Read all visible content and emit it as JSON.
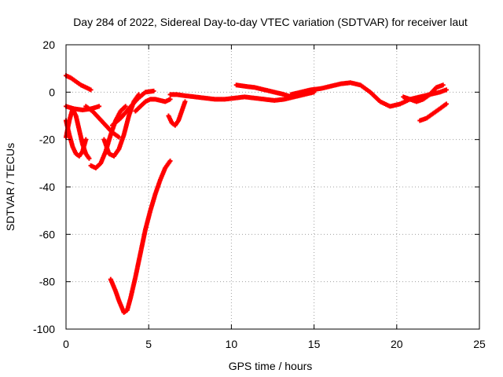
{
  "chart_data": {
    "type": "scatter",
    "title": "Day 284 of 2022, Sidereal Day-to-day VTEC variation (SDTVAR) for receiver laut",
    "xlabel": "GPS time / hours",
    "ylabel": "SDTVAR / TECUs",
    "xlim": [
      0,
      25
    ],
    "ylim": [
      -100,
      20
    ],
    "xticks": [
      0,
      5,
      10,
      15,
      20,
      25
    ],
    "yticks": [
      -100,
      -80,
      -60,
      -40,
      -20,
      0,
      20
    ],
    "grid": true,
    "series_color": "#ff0000",
    "series": [
      {
        "x": [
          0.0,
          0.3,
          0.6,
          0.9,
          1.2,
          1.5
        ],
        "y": [
          7,
          6,
          4.5,
          3,
          2,
          1
        ]
      },
      {
        "x": [
          0.0,
          0.2,
          0.4,
          0.6,
          0.8,
          1.0,
          1.2,
          1.4
        ],
        "y": [
          -19,
          -12,
          -7,
          -10,
          -16,
          -22,
          -26,
          -28
        ]
      },
      {
        "x": [
          0.0,
          0.2,
          0.4,
          0.6,
          0.8,
          1.0,
          1.2
        ],
        "y": [
          -12,
          -18,
          -23,
          -26,
          -27,
          -25,
          -20
        ]
      },
      {
        "x": [
          0.0,
          0.5,
          1.0,
          1.5,
          2.0
        ],
        "y": [
          -6,
          -7,
          -7.5,
          -7,
          -6
        ]
      },
      {
        "x": [
          1.5,
          1.8,
          2.1,
          2.4,
          2.7,
          3.0,
          3.3,
          3.6
        ],
        "y": [
          -31,
          -32,
          -30,
          -25,
          -18,
          -12,
          -8,
          -6
        ]
      },
      {
        "x": [
          2.3,
          2.6,
          2.9,
          3.2,
          3.5,
          3.8,
          4.1,
          4.4
        ],
        "y": [
          -20,
          -26,
          -27,
          -24,
          -18,
          -10,
          -4,
          -1
        ]
      },
      {
        "x": [
          1.2,
          1.6,
          2.0,
          2.4,
          2.8,
          3.2
        ],
        "y": [
          -6,
          -8,
          -11,
          -14,
          -17,
          -19
        ]
      },
      {
        "x": [
          2.8,
          3.3,
          3.8,
          4.3,
          4.8,
          5.3
        ],
        "y": [
          -14,
          -11,
          -7,
          -3,
          0,
          0.5
        ]
      },
      {
        "x": [
          4.2,
          4.5,
          4.8,
          5.1,
          5.4,
          5.7,
          6.0,
          6.3
        ],
        "y": [
          -8,
          -6,
          -4,
          -3,
          -3,
          -3.5,
          -4,
          -3
        ]
      },
      {
        "x": [
          2.7,
          3.0,
          3.2,
          3.5,
          3.7,
          3.9,
          4.2,
          4.5,
          4.8,
          5.1,
          5.4,
          5.7,
          6.0,
          6.3
        ],
        "y": [
          -79,
          -84,
          -88,
          -93,
          -92,
          -87,
          -78,
          -68,
          -58,
          -50,
          -43,
          -37,
          -32,
          -29
        ]
      },
      {
        "x": [
          6.2,
          6.4,
          6.6,
          6.8,
          7.0,
          7.2
        ],
        "y": [
          -10,
          -13,
          -14,
          -12,
          -8,
          -4
        ]
      },
      {
        "x": [
          6.3,
          6.7,
          7.2,
          7.8,
          8.4,
          9.0,
          9.6,
          10.2,
          10.8,
          11.4,
          12.0,
          12.6,
          13.2,
          13.8,
          14.4,
          15.0
        ],
        "y": [
          -1,
          -1,
          -1.5,
          -2,
          -2.5,
          -3,
          -3,
          -2.5,
          -2,
          -2.5,
          -3,
          -3.5,
          -3,
          -2,
          -1,
          0
        ]
      },
      {
        "x": [
          10.3,
          10.8,
          11.4,
          12.0,
          12.6,
          13.2,
          13.6
        ],
        "y": [
          3,
          2.5,
          2,
          1,
          0,
          -1,
          -2
        ]
      },
      {
        "x": [
          13.6,
          14.2,
          14.8,
          15.4,
          16.0,
          16.6,
          17.2,
          17.8,
          18.4,
          19.0,
          19.6,
          20.2,
          20.8,
          21.4,
          22.0,
          22.6,
          23.0
        ],
        "y": [
          -1,
          0,
          1,
          1.5,
          2.5,
          3.5,
          4,
          3,
          0,
          -4,
          -6,
          -5,
          -3,
          -2,
          -1,
          0,
          1
        ]
      },
      {
        "x": [
          20.4,
          20.8,
          21.2,
          21.6,
          22.0,
          22.4,
          22.8
        ],
        "y": [
          -2,
          -3,
          -4,
          -3,
          -1,
          2,
          3
        ]
      },
      {
        "x": [
          21.4,
          21.8,
          22.2,
          22.6,
          23.0
        ],
        "y": [
          -12,
          -11,
          -9,
          -7,
          -5
        ]
      }
    ]
  }
}
